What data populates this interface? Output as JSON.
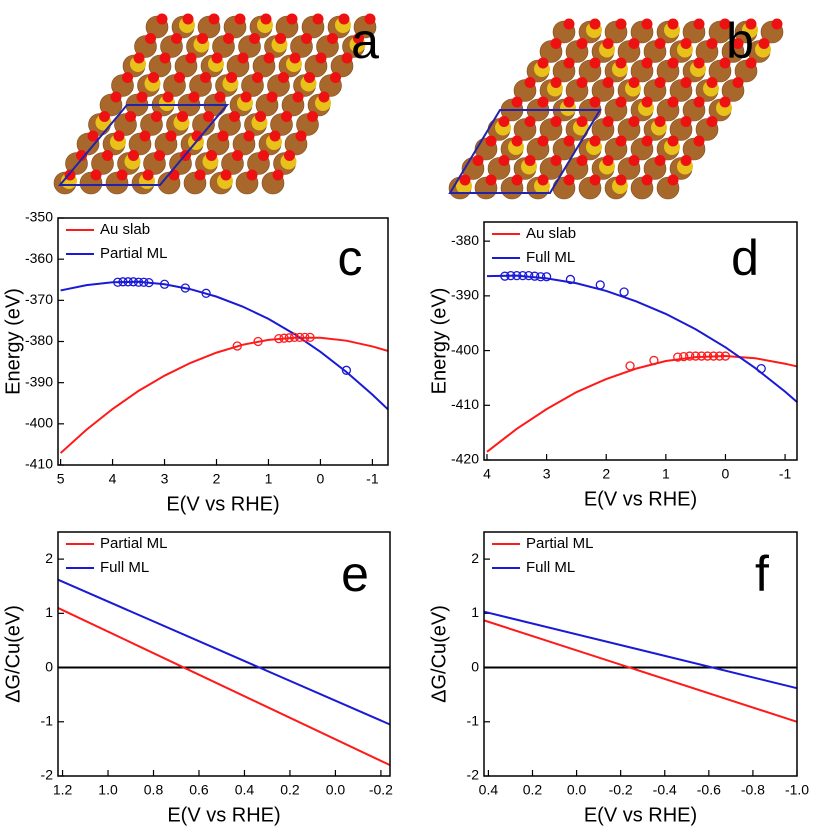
{
  "structures": [
    {
      "label": "a"
    },
    {
      "label": "b"
    }
  ],
  "chart_data": [
    {
      "type": "line",
      "label": "c",
      "xlabel": "E(V vs RHE)",
      "ylabel": "Energy (eV)",
      "xlim": [
        5.05,
        -1.3
      ],
      "ylim": [
        -410,
        -350
      ],
      "xticks": [
        5,
        4,
        3,
        2,
        1,
        0,
        -1
      ],
      "yticks": [
        -410,
        -400,
        -390,
        -380,
        -370,
        -360,
        -350
      ],
      "series": [
        {
          "name": "Au slab",
          "color": "#ff1a1a",
          "x": [
            5,
            4.5,
            4,
            3.5,
            3,
            2.5,
            2,
            1.5,
            1,
            0.5,
            0,
            -0.5,
            -1,
            -1.3
          ],
          "values": [
            -407.1,
            -401.4,
            -396.4,
            -392.0,
            -388.3,
            -385.2,
            -382.7,
            -380.8,
            -379.6,
            -379.1,
            -379.1,
            -379.8,
            -381.2,
            -382.3
          ]
        },
        {
          "name": "Partial ML",
          "color": "#1a1ad6",
          "x": [
            5,
            4.5,
            4,
            3.5,
            3,
            2.5,
            2,
            1.5,
            1,
            0.5,
            0,
            -0.5,
            -1,
            -1.3
          ],
          "values": [
            -367.6,
            -366.3,
            -365.6,
            -365.5,
            -366.1,
            -367.3,
            -369.1,
            -371.5,
            -374.5,
            -378.2,
            -382.5,
            -387.4,
            -392.9,
            -396.5
          ]
        },
        {
          "marker": "circle",
          "color": "#ff1a1a",
          "x": [
            1.6,
            1.2,
            0.8,
            0.7,
            0.6,
            0.5,
            0.4,
            0.3,
            0.2
          ],
          "values": [
            -381.1,
            -380.0,
            -379.3,
            -379.2,
            -379.1,
            -379.0,
            -379.0,
            -379.0,
            -379.0
          ]
        },
        {
          "marker": "circle",
          "color": "#1a1ad6",
          "x": [
            3.9,
            3.8,
            3.7,
            3.6,
            3.5,
            3.4,
            3.3,
            3.0,
            2.6,
            2.2,
            -0.5
          ],
          "values": [
            -365.6,
            -365.5,
            -365.5,
            -365.5,
            -365.6,
            -365.6,
            -365.7,
            -366.1,
            -367.0,
            -368.3,
            -387.0
          ]
        }
      ]
    },
    {
      "type": "line",
      "label": "d",
      "xlabel": "E(V vs RHE)",
      "ylabel": "Energy (eV)",
      "xlim": [
        4.05,
        -1.2
      ],
      "ylim": [
        -420,
        -376.5
      ],
      "xticks": [
        4,
        3,
        2,
        1,
        0,
        -1
      ],
      "yticks": [
        -420,
        -410,
        -400,
        -390,
        -380
      ],
      "series": [
        {
          "name": "Au slab",
          "color": "#ff1a1a",
          "x": [
            4,
            3.5,
            3,
            2.5,
            2,
            1.5,
            1,
            0.5,
            0,
            -0.5,
            -1,
            -1.2
          ],
          "values": [
            -418.5,
            -414.3,
            -410.7,
            -407.6,
            -405.2,
            -403.3,
            -401.9,
            -401.2,
            -401.0,
            -401.4,
            -402.4,
            -402.9
          ]
        },
        {
          "name": "Full ML",
          "color": "#1a1ad6",
          "x": [
            4,
            3.5,
            3,
            2.5,
            2,
            1.5,
            1,
            0.5,
            0,
            -0.5,
            -1,
            -1.2
          ],
          "values": [
            -386.4,
            -386.3,
            -386.8,
            -387.7,
            -389.1,
            -391.0,
            -393.3,
            -396.1,
            -399.4,
            -403.2,
            -407.5,
            -409.4
          ]
        },
        {
          "marker": "circle",
          "color": "#ff1a1a",
          "x": [
            1.6,
            1.2,
            0.8,
            0.7,
            0.6,
            0.5,
            0.4,
            0.3,
            0.2,
            0.1,
            0
          ],
          "values": [
            -402.8,
            -401.8,
            -401.2,
            -401.1,
            -401.0,
            -401.0,
            -401.0,
            -401.0,
            -401.0,
            -401.0,
            -401.0
          ]
        },
        {
          "marker": "circle",
          "color": "#1a1ad6",
          "x": [
            3.7,
            3.6,
            3.5,
            3.4,
            3.3,
            3.2,
            3.1,
            3.0,
            2.6,
            2.1,
            1.7,
            -0.6
          ],
          "values": [
            -386.4,
            -386.3,
            -386.3,
            -386.3,
            -386.3,
            -386.4,
            -386.5,
            -386.5,
            -387.0,
            -388.0,
            -389.3,
            -403.3
          ]
        }
      ]
    },
    {
      "type": "line",
      "label": "e",
      "xlabel": "E(V vs RHE)",
      "ylabel": "ΔG/Cu(eV)",
      "xlim": [
        1.22,
        -0.24
      ],
      "ylim": [
        -2,
        2.5
      ],
      "xticks": [
        1.2,
        {
          "value": 1.0,
          "label": "1.0"
        },
        0.8,
        0.6,
        0.4,
        0.2,
        {
          "value": 0.0,
          "label": "0.0"
        },
        -0.2
      ],
      "yticks": [
        -2,
        -1,
        0,
        1,
        2
      ],
      "hline": 0,
      "hline_color": "#000000",
      "series": [
        {
          "name": "Partial ML",
          "color": "#ff1a1a",
          "x": [
            1.22,
            -0.24
          ],
          "values": [
            1.1,
            -1.8
          ]
        },
        {
          "name": "Full ML",
          "color": "#1a1ad6",
          "x": [
            1.22,
            -0.24
          ],
          "values": [
            1.62,
            -1.05
          ]
        }
      ]
    },
    {
      "type": "line",
      "label": "f",
      "xlabel": "E(V vs RHE)",
      "ylabel": "ΔG/Cu(eV)",
      "xlim": [
        0.42,
        -1.0
      ],
      "ylim": [
        -2,
        2.5
      ],
      "xticks": [
        0.4,
        0.2,
        {
          "value": 0,
          "label": "0.0"
        },
        -0.2,
        -0.4,
        -0.6,
        -0.8,
        {
          "value": -1,
          "label": "-1.0"
        }
      ],
      "yticks": [
        -2,
        -1,
        0,
        1,
        2
      ],
      "hline": 0,
      "hline_color": "#000000",
      "series": [
        {
          "name": "Partial ML",
          "color": "#ff1a1a",
          "x": [
            0.42,
            -1.0
          ],
          "values": [
            0.87,
            -1.0
          ]
        },
        {
          "name": "Full ML",
          "color": "#1a1ad6",
          "x": [
            0.42,
            -1.0
          ],
          "values": [
            1.03,
            -0.38
          ]
        }
      ]
    }
  ]
}
